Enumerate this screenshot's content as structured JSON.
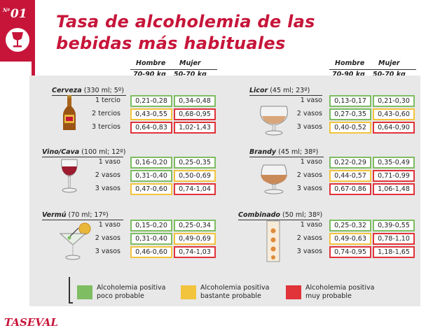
{
  "badge": {
    "prefix": "Nº",
    "number": "01"
  },
  "title": {
    "line1": "Tasa de alcoholemia de las",
    "line2": "bebidas más habituales"
  },
  "headers": {
    "hombre": "Hombre",
    "mujer": "Mujer",
    "hombre_weight": "70-90 kg",
    "mujer_weight": "50-70 kg"
  },
  "colors": {
    "brand": "#c7153a",
    "green": "#7ebd62",
    "yellow": "#f2c43e",
    "red": "#e0333a"
  },
  "sections": {
    "cerveza": {
      "name": "Cerveza",
      "detail": "(330 ml; 5º)",
      "icon": "beer-bottle-icon",
      "rows": [
        {
          "label": "1 tercio",
          "hombre": "0,21-0,28",
          "mujer": "0,34-0,48",
          "hombre_level": "green",
          "mujer_level": "green"
        },
        {
          "label": "2 tercios",
          "hombre": "0,43-0,55",
          "mujer": "0,68-0,95",
          "hombre_level": "yellow",
          "mujer_level": "red"
        },
        {
          "label": "3 tercios",
          "hombre": "0,64-0,83",
          "mujer": "1,02-1,43",
          "hombre_level": "red",
          "mujer_level": "red"
        }
      ]
    },
    "licor": {
      "name": "Licor",
      "detail": "(45 ml; 23º)",
      "icon": "snifter-glass-icon",
      "rows": [
        {
          "label": "1 vaso",
          "hombre": "0,13-0,17",
          "mujer": "0,21-0,30",
          "hombre_level": "green",
          "mujer_level": "green"
        },
        {
          "label": "2 vasos",
          "hombre": "0,27-0,35",
          "mujer": "0,43-0,60",
          "hombre_level": "green",
          "mujer_level": "yellow"
        },
        {
          "label": "3 vasos",
          "hombre": "0,40-0,52",
          "mujer": "0,64-0,90",
          "hombre_level": "yellow",
          "mujer_level": "red"
        }
      ]
    },
    "vino": {
      "name": "Vino/Cava",
      "detail": "(100 ml; 12º)",
      "icon": "wine-glass-icon",
      "rows": [
        {
          "label": "1 vaso",
          "hombre": "0,16-0,20",
          "mujer": "0,25-0,35",
          "hombre_level": "green",
          "mujer_level": "green"
        },
        {
          "label": "2 vasos",
          "hombre": "0,31-0,40",
          "mujer": "0,50-0,69",
          "hombre_level": "green",
          "mujer_level": "yellow"
        },
        {
          "label": "3 vasos",
          "hombre": "0,47-0,60",
          "mujer": "0,74-1,04",
          "hombre_level": "yellow",
          "mujer_level": "red"
        }
      ]
    },
    "brandy": {
      "name": "Brandy",
      "detail": "(45 ml; 38º)",
      "icon": "brandy-glass-icon",
      "rows": [
        {
          "label": "1 vaso",
          "hombre": "0,22-0,29",
          "mujer": "0,35-0,49",
          "hombre_level": "green",
          "mujer_level": "green"
        },
        {
          "label": "2 vasos",
          "hombre": "0,44-0,57",
          "mujer": "0,71-0,99",
          "hombre_level": "yellow",
          "mujer_level": "red"
        },
        {
          "label": "3 vasos",
          "hombre": "0,67-0,86",
          "mujer": "1,06-1,48",
          "hombre_level": "red",
          "mujer_level": "red"
        }
      ]
    },
    "vermu": {
      "name": "Vermú",
      "detail": "(70 ml; 17º)",
      "icon": "cocktail-glass-icon",
      "rows": [
        {
          "label": "1 vaso",
          "hombre": "0,15-0,20",
          "mujer": "0,25-0,34",
          "hombre_level": "green",
          "mujer_level": "green"
        },
        {
          "label": "2 vasos",
          "hombre": "0,31-0,40",
          "mujer": "0,49-0,69",
          "hombre_level": "green",
          "mujer_level": "yellow"
        },
        {
          "label": "3 vasos",
          "hombre": "0,46-0,60",
          "mujer": "0,74-1,03",
          "hombre_level": "yellow",
          "mujer_level": "red"
        }
      ]
    },
    "combinado": {
      "name": "Combinado",
      "detail": "(50 ml; 38º)",
      "icon": "highball-glass-icon",
      "rows": [
        {
          "label": "1 vaso",
          "hombre": "0,25-0,32",
          "mujer": "0,39-0,55",
          "hombre_level": "green",
          "mujer_level": "green"
        },
        {
          "label": "2 vasos",
          "hombre": "0,49-0,63",
          "mujer": "0,78-1,10",
          "hombre_level": "yellow",
          "mujer_level": "red"
        },
        {
          "label": "3 vasos",
          "hombre": "0,74-0,95",
          "mujer": "1,18-1,65",
          "hombre_level": "red",
          "mujer_level": "red"
        }
      ]
    }
  },
  "legend": [
    {
      "line1": "Alcoholemia positiva",
      "line2": "poco probable",
      "color": "#7ebd62"
    },
    {
      "line1": "Alcoholemia positiva",
      "line2": "bastante probable",
      "color": "#f2c43e"
    },
    {
      "line1": "Alcoholemia positiva",
      "line2": "muy probable",
      "color": "#e0333a"
    }
  ],
  "footer": "TASEVAL"
}
